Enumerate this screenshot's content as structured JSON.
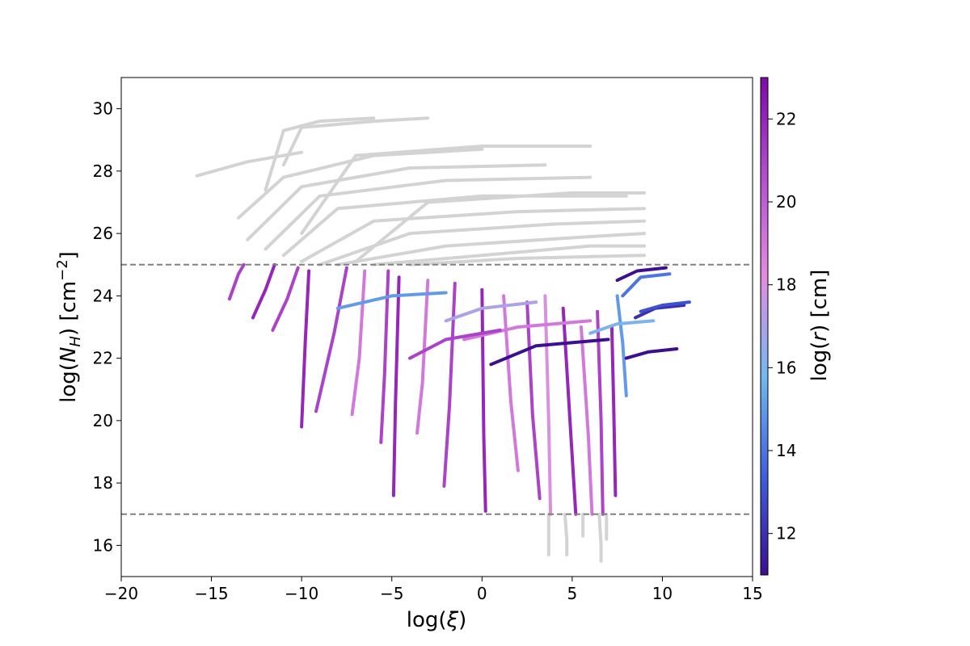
{
  "chart_data": {
    "type": "scatter",
    "title": "",
    "xlabel": "log(ξ)",
    "ylabel": "log(N_H)   [cm^-2]",
    "xlim": [
      -20,
      15
    ],
    "ylim": [
      15,
      31
    ],
    "xticks": [
      -20,
      -15,
      -10,
      -5,
      0,
      5,
      10,
      15
    ],
    "xtick_labels": [
      "−20",
      "−15",
      "−10",
      "−5",
      "0",
      "5",
      "10",
      "15"
    ],
    "yticks": [
      16,
      18,
      20,
      22,
      24,
      26,
      28,
      30
    ],
    "ytick_labels": [
      "16",
      "18",
      "20",
      "22",
      "24",
      "26",
      "28",
      "30"
    ],
    "reference_lines": [
      {
        "axis": "y",
        "value": 25,
        "style": "dashed",
        "color": "#808080"
      },
      {
        "axis": "y",
        "value": 17,
        "style": "dashed",
        "color": "#808080"
      }
    ],
    "colorbar": {
      "label": "log(r)   [cm]",
      "range": [
        11,
        23
      ],
      "ticks": [
        12,
        14,
        16,
        18,
        20,
        22
      ],
      "tick_labels": [
        "12",
        "14",
        "16",
        "18",
        "20",
        "22"
      ],
      "colors": [
        "#3b0f8f",
        "#3f5fdc",
        "#73b8f0",
        "#e28ce0",
        "#b44fd0",
        "#7d0aa8"
      ]
    },
    "series": [
      {
        "color": "#d3d3d3",
        "description_of_region": "tracks with log(N_H) above 25 and below 17",
        "tracks": [
          {
            "x": [
              -15.8,
              -13,
              -10
            ],
            "y": [
              27.85,
              28.3,
              28.6
            ]
          },
          {
            "x": [
              -12,
              -11,
              -9,
              -6
            ],
            "y": [
              27.4,
              29.3,
              29.6,
              29.7
            ]
          },
          {
            "x": [
              -11,
              -10,
              -6,
              -3
            ],
            "y": [
              28.2,
              29.4,
              29.6,
              29.7
            ]
          },
          {
            "x": [
              -13.5,
              -11,
              -6,
              0
            ],
            "y": [
              26.5,
              27.8,
              28.5,
              28.7
            ]
          },
          {
            "x": [
              -13,
              -10,
              -4,
              3.5
            ],
            "y": [
              25.8,
              27.5,
              28.1,
              28.2
            ]
          },
          {
            "x": [
              -12,
              -9,
              -2,
              6
            ],
            "y": [
              25.5,
              27.2,
              27.7,
              27.8
            ]
          },
          {
            "x": [
              -11,
              -8,
              0,
              8
            ],
            "y": [
              25.3,
              26.8,
              27.2,
              27.2
            ]
          },
          {
            "x": [
              -10,
              -6,
              2,
              9
            ],
            "y": [
              25.1,
              26.4,
              26.7,
              26.8
            ]
          },
          {
            "x": [
              -9,
              -4,
              4,
              9
            ],
            "y": [
              25.0,
              26.0,
              26.3,
              26.4
            ]
          },
          {
            "x": [
              -8,
              -2,
              6,
              9
            ],
            "y": [
              25.0,
              25.6,
              25.9,
              26.0
            ]
          },
          {
            "x": [
              -6,
              0,
              6,
              9
            ],
            "y": [
              25.0,
              25.3,
              25.6,
              25.6
            ]
          },
          {
            "x": [
              -4,
              2,
              9
            ],
            "y": [
              25.0,
              25.2,
              25.3
            ]
          },
          {
            "x": [
              -7,
              -3,
              5,
              9
            ],
            "y": [
              25.1,
              27.0,
              27.3,
              27.3
            ]
          },
          {
            "x": [
              -10,
              -7,
              0,
              6
            ],
            "y": [
              26.0,
              28.5,
              28.8,
              28.8
            ]
          },
          {
            "x": [
              3.7,
              3.7,
              3.7
            ],
            "y": [
              17.0,
              16.2,
              15.7
            ]
          },
          {
            "x": [
              4.6,
              4.7,
              4.7
            ],
            "y": [
              17.0,
              16.2,
              15.7
            ]
          },
          {
            "x": [
              5.6,
              5.6
            ],
            "y": [
              17.0,
              16.3
            ]
          },
          {
            "x": [
              6.5,
              6.6,
              6.6
            ],
            "y": [
              17.0,
              16.0,
              15.5
            ]
          },
          {
            "x": [
              6.9,
              6.9
            ],
            "y": [
              17.0,
              16.2
            ]
          }
        ]
      },
      {
        "colored_by": "log(r)",
        "description_of_region": "tracks between log(N_H) 17 and 25",
        "tracks": [
          {
            "x": [
              -13.2,
              -13.5,
              -14
            ],
            "y": [
              25.0,
              24.7,
              23.9
            ],
            "logr": 21
          },
          {
            "x": [
              -11.5,
              -12,
              -12.7
            ],
            "y": [
              25.0,
              24.2,
              23.3
            ],
            "logr": 22
          },
          {
            "x": [
              -10.2,
              -10.8,
              -11.6
            ],
            "y": [
              24.9,
              23.9,
              22.9
            ],
            "logr": 21
          },
          {
            "x": [
              -9.6,
              -9.8,
              -10
            ],
            "y": [
              24.8,
              22.5,
              19.8
            ],
            "logr": 22
          },
          {
            "x": [
              -7.5,
              -8.2,
              -9.2
            ],
            "y": [
              24.9,
              22.8,
              20.3
            ],
            "logr": 21
          },
          {
            "x": [
              -6.5,
              -6.8,
              -7.2
            ],
            "y": [
              24.8,
              22.0,
              20.2
            ],
            "logr": 19
          },
          {
            "x": [
              -5.2,
              -5.4,
              -5.6
            ],
            "y": [
              24.8,
              21.5,
              19.3
            ],
            "logr": 21
          },
          {
            "x": [
              -4.6,
              -4.8,
              -4.9
            ],
            "y": [
              24.6,
              20.5,
              17.6
            ],
            "logr": 22
          },
          {
            "x": [
              -3.0,
              -3.3,
              -3.6
            ],
            "y": [
              24.5,
              21.2,
              19.6
            ],
            "logr": 19
          },
          {
            "x": [
              -1.5,
              -1.8,
              -2.1
            ],
            "y": [
              24.4,
              20.5,
              17.9
            ],
            "logr": 21
          },
          {
            "x": [
              0.0,
              0.1,
              0.2
            ],
            "y": [
              24.2,
              19.5,
              17.1
            ],
            "logr": 22
          },
          {
            "x": [
              1.2,
              1.6,
              2.0
            ],
            "y": [
              24.0,
              20.6,
              18.4
            ],
            "logr": 19
          },
          {
            "x": [
              2.5,
              2.8,
              3.2
            ],
            "y": [
              23.8,
              20.2,
              17.5
            ],
            "logr": 21
          },
          {
            "x": [
              3.5,
              3.7,
              3.8
            ],
            "y": [
              24.0,
              20.0,
              17.0
            ],
            "logr": 18
          },
          {
            "x": [
              4.5,
              4.9,
              5.2
            ],
            "y": [
              23.6,
              19.8,
              17.0
            ],
            "logr": 22
          },
          {
            "x": [
              5.5,
              5.9,
              6.1
            ],
            "y": [
              23.0,
              19.5,
              17.0
            ],
            "logr": 19
          },
          {
            "x": [
              6.4,
              6.6,
              6.7
            ],
            "y": [
              23.5,
              20.0,
              17.0
            ],
            "logr": 21
          },
          {
            "x": [
              7.2,
              7.3,
              7.4
            ],
            "y": [
              23.0,
              20.5,
              17.6
            ],
            "logr": 22
          },
          {
            "x": [
              7.5,
              7.8,
              8.0
            ],
            "y": [
              24.0,
              22.5,
              20.8
            ],
            "logr": 15
          },
          {
            "x": [
              7.8,
              8.8,
              10.4
            ],
            "y": [
              24.0,
              24.6,
              24.7
            ],
            "logr": 14
          },
          {
            "x": [
              8.5,
              9.6,
              11.2
            ],
            "y": [
              23.3,
              23.6,
              23.7
            ],
            "logr": 12
          },
          {
            "x": [
              8.8,
              10.0,
              11.5
            ],
            "y": [
              23.5,
              23.7,
              23.8
            ],
            "logr": 13
          },
          {
            "x": [
              8.0,
              9.2,
              10.8
            ],
            "y": [
              22.0,
              22.2,
              22.3
            ],
            "logr": 11
          },
          {
            "x": [
              7.5,
              8.6,
              10.2
            ],
            "y": [
              24.5,
              24.8,
              24.9
            ],
            "logr": 11
          },
          {
            "x": [
              6.0,
              7.5,
              9.5
            ],
            "y": [
              22.8,
              23.1,
              23.2
            ],
            "logr": 16
          },
          {
            "x": [
              -2.0,
              0.0,
              3.0
            ],
            "y": [
              23.2,
              23.6,
              23.8
            ],
            "logr": 17
          },
          {
            "x": [
              -8.0,
              -5.0,
              -2.0
            ],
            "y": [
              23.6,
              24.0,
              24.1
            ],
            "logr": 15
          },
          {
            "x": [
              -1.0,
              2.0,
              6.0
            ],
            "y": [
              22.6,
              23.0,
              23.2
            ],
            "logr": 19
          },
          {
            "x": [
              0.5,
              3.0,
              7.0
            ],
            "y": [
              21.8,
              22.4,
              22.6
            ],
            "logr": 11
          },
          {
            "x": [
              -4.0,
              -2.0,
              1.0
            ],
            "y": [
              22.0,
              22.6,
              22.9
            ],
            "logr": 21
          }
        ]
      }
    ],
    "grid": false,
    "legend": "none"
  }
}
